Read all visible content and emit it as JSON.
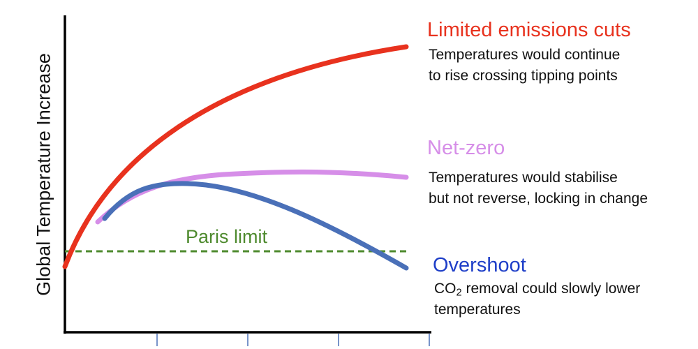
{
  "chart_data": {
    "type": "line",
    "title": "",
    "xlabel": "",
    "ylabel": "Global Temperature Increase",
    "x_tick_count": 4,
    "grid": false,
    "legend_placement": "right",
    "series": [
      {
        "name": "Limited emissions cuts",
        "color": "#e8321e",
        "description": "Temperatures would continue to rise crossing tipping points",
        "description_lines": [
          "Temperatures would continue",
          "to rise crossing tipping points"
        ],
        "trend": "rises steadily throughout"
      },
      {
        "name": "Net-zero",
        "color": "#d68ee8",
        "description": "Temperatures would stabilise but not reverse, locking in change",
        "description_lines": [
          "Temperatures would stabilise",
          "but not reverse, locking in change"
        ],
        "trend": "rises then levels off"
      },
      {
        "name": "Overshoot",
        "color": "#4a70b8",
        "title_color": "#1f3fc8",
        "description": "CO2 removal could slowly lower temperatures",
        "description_lines": [
          "CO2 removal could slowly lower",
          "temperatures"
        ],
        "description_line1_parts": {
          "pre": "CO",
          "sub": "2",
          "post": " removal could slowly lower"
        },
        "trend": "rises, peaks, then declines below the Paris limit"
      }
    ],
    "reference_lines": [
      {
        "name": "Paris limit",
        "color": "#4e8a2e",
        "style": "dashed"
      }
    ]
  }
}
